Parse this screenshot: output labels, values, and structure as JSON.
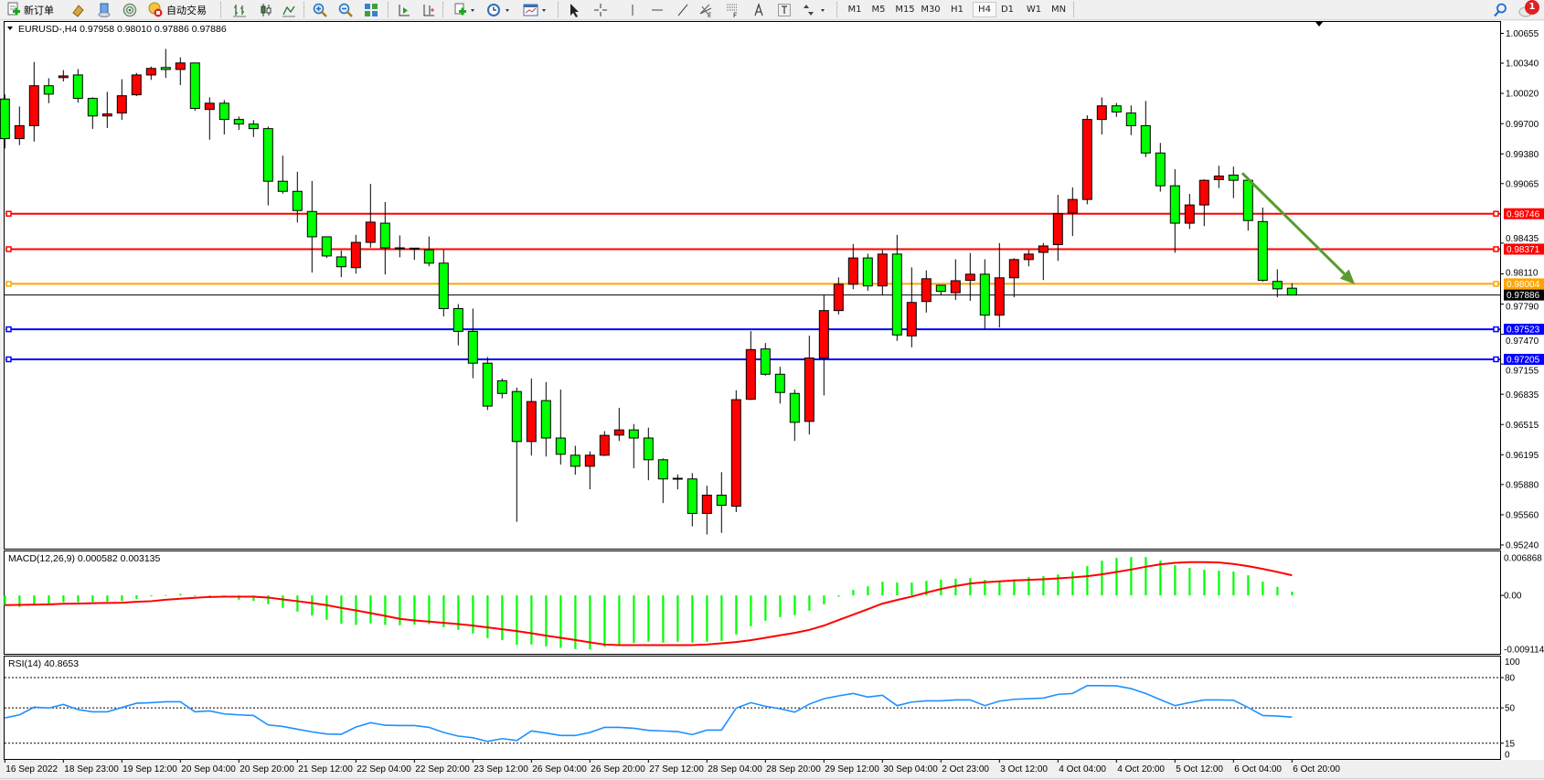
{
  "toolbar": {
    "new_order_label": "新订单",
    "auto_trading_label": "自动交易",
    "timeframes": [
      "M1",
      "M5",
      "M15",
      "M30",
      "H1",
      "H4",
      "D1",
      "W1",
      "MN"
    ],
    "active_timeframe": "H4",
    "notification_count": "1",
    "icons": [
      "new-order-icon",
      "market-watch-icon",
      "navigator-icon",
      "signals-icon",
      "auto-trading-icon",
      "bar-chart-icon",
      "candlestick-icon",
      "line-chart-icon",
      "zoom-in-icon",
      "zoom-out-icon",
      "tile-windows-icon",
      "auto-scroll-icon",
      "chart-shift-icon",
      "indicators-icon",
      "periods-icon",
      "templates-icon",
      "cursor-icon",
      "crosshair-icon",
      "vertical-line-icon",
      "horizontal-line-icon",
      "trendline-icon",
      "fibonacci-fan-icon",
      "fibonacci-retracement-icon",
      "text-icon",
      "text-label-icon",
      "arrows-icon",
      "search-icon",
      "notification-icon"
    ]
  },
  "chart": {
    "symbol": "EURUSD-,H4",
    "ohlc": "0.97958 0.98010 0.97886 0.97886"
  },
  "colors": {
    "bull": "#ff0000",
    "bear": "#00ff00",
    "resistance": "#ff0000",
    "pivot": "#ffa500",
    "support": "#0000ff",
    "arrow": "#5a9a2e",
    "macd_hist": "#00ff00",
    "macd_signal": "#ff0000",
    "rsi": "#1e90ff"
  },
  "chart_data": {
    "type": "candlestick",
    "price_axis_ticks": [
      "1.00655",
      "1.00340",
      "1.00020",
      "0.99700",
      "0.99380",
      "0.99065",
      "0.98435",
      "0.98110",
      "0.97790",
      "0.97470",
      "0.97155",
      "0.96835",
      "0.96515",
      "0.96195",
      "0.95880",
      "0.95560",
      "0.95240"
    ],
    "ylim": [
      0.9524,
      1.00655
    ],
    "time_labels": [
      "16 Sep 2022",
      "18 Sep 23:00",
      "19 Sep 12:00",
      "20 Sep 04:00",
      "20 Sep 20:00",
      "21 Sep 12:00",
      "22 Sep 04:00",
      "22 Sep 20:00",
      "23 Sep 12:00",
      "26 Sep 04:00",
      "26 Sep 20:00",
      "27 Sep 12:00",
      "28 Sep 04:00",
      "28 Sep 20:00",
      "29 Sep 12:00",
      "30 Sep 04:00",
      "2 Oct 23:00",
      "3 Oct 12:00",
      "4 Oct 04:00",
      "4 Oct 20:00",
      "5 Oct 12:00",
      "6 Oct 04:00",
      "6 Oct 20:00"
    ],
    "ohlc": [
      [
        0.9996,
        1.00008,
        0.99437,
        0.99541
      ],
      [
        0.99541,
        0.99881,
        0.99472,
        0.99678
      ],
      [
        0.99678,
        1.00352,
        0.9951,
        1.00101
      ],
      [
        1.00101,
        1.0018,
        0.99916,
        1.00012
      ],
      [
        1.00187,
        1.00266,
        1.00146,
        1.00205
      ],
      [
        1.00215,
        1.00277,
        0.99922,
        0.99967
      ],
      [
        0.99967,
        0.99978,
        0.99644,
        0.99781
      ],
      [
        0.99781,
        1.00036,
        0.99654,
        0.99802
      ],
      [
        0.99812,
        1.0017,
        0.9974,
        0.99995
      ],
      [
        1.00005,
        1.00236,
        0.99991,
        1.00215
      ],
      [
        1.00215,
        1.00304,
        1.00163,
        1.00284
      ],
      [
        1.00294,
        1.0049,
        1.00184,
        1.00273
      ],
      [
        1.00273,
        1.00401,
        1.00108,
        1.00342
      ],
      [
        1.00342,
        1.00342,
        0.99836,
        0.99861
      ],
      [
        0.9985,
        0.99978,
        0.9953,
        0.99916
      ],
      [
        0.99916,
        0.9995,
        0.99585,
        0.99744
      ],
      [
        0.99744,
        0.99775,
        0.99634,
        0.99695
      ],
      [
        0.99695,
        0.99737,
        0.99558,
        0.99647
      ],
      [
        0.99647,
        0.99668,
        0.98835,
        0.9909
      ],
      [
        0.9909,
        0.99362,
        0.98959,
        0.98983
      ],
      [
        0.98983,
        0.9919,
        0.98653,
        0.9878
      ],
      [
        0.9877,
        0.99093,
        0.98123,
        0.98502
      ],
      [
        0.98502,
        0.98502,
        0.98278,
        0.98299
      ],
      [
        0.98289,
        0.98357,
        0.98075,
        0.98185
      ],
      [
        0.98175,
        0.98522,
        0.98113,
        0.98443
      ],
      [
        0.98443,
        0.99062,
        0.98388,
        0.98657
      ],
      [
        0.98646,
        0.9887,
        0.98103,
        0.98385
      ],
      [
        0.98385,
        0.98516,
        0.98285,
        0.98382
      ],
      [
        0.98382,
        0.98385,
        0.98258,
        0.9838
      ],
      [
        0.98364,
        0.98505,
        0.98189,
        0.98223
      ],
      [
        0.98223,
        0.98364,
        0.97659,
        0.97742
      ],
      [
        0.97742,
        0.9779,
        0.97353,
        0.97501
      ],
      [
        0.97501,
        0.97742,
        0.97005,
        0.97164
      ],
      [
        0.97164,
        0.97229,
        0.96668,
        0.9671
      ],
      [
        0.96978,
        0.97002,
        0.96792,
        0.96844
      ],
      [
        0.96864,
        0.96906,
        0.95485,
        0.96335
      ],
      [
        0.96335,
        0.97002,
        0.96187,
        0.96758
      ],
      [
        0.96768,
        0.96964,
        0.96176,
        0.96372
      ],
      [
        0.96372,
        0.96885,
        0.9609,
        0.962
      ],
      [
        0.9619,
        0.9629,
        0.95984,
        0.96073
      ],
      [
        0.96073,
        0.96231,
        0.95829,
        0.9619
      ],
      [
        0.9619,
        0.96445,
        0.9618,
        0.964
      ],
      [
        0.96403,
        0.96692,
        0.96341,
        0.96458
      ],
      [
        0.96458,
        0.9652,
        0.96052,
        0.96372
      ],
      [
        0.96372,
        0.96482,
        0.95925,
        0.96142
      ],
      [
        0.96142,
        0.96156,
        0.95684,
        0.95939
      ],
      [
        0.95939,
        0.95987,
        0.95829,
        0.95946
      ],
      [
        0.95939,
        0.96001,
        0.95437,
        0.95574
      ],
      [
        0.95574,
        0.95867,
        0.95351,
        0.95767
      ],
      [
        0.95767,
        0.96011,
        0.95368,
        0.9566
      ],
      [
        0.9565,
        0.96878,
        0.95588,
        0.96778
      ],
      [
        0.96782,
        0.97504,
        0.96775,
        0.97308
      ],
      [
        0.97315,
        0.97377,
        0.97033,
        0.97047
      ],
      [
        0.97047,
        0.97126,
        0.96737,
        0.96854
      ],
      [
        0.96844,
        0.96885,
        0.96341,
        0.96538
      ],
      [
        0.96548,
        0.97456,
        0.9641,
        0.97219
      ],
      [
        0.97219,
        0.97886,
        0.96823,
        0.97721
      ],
      [
        0.97721,
        0.98072,
        0.9768,
        0.98
      ],
      [
        0.98,
        0.98426,
        0.97948,
        0.98278
      ],
      [
        0.98278,
        0.98323,
        0.97931,
        0.97982
      ],
      [
        0.97982,
        0.98361,
        0.97886,
        0.98319
      ],
      [
        0.98319,
        0.98522,
        0.97401,
        0.97463
      ],
      [
        0.97453,
        0.98178,
        0.97332,
        0.97807
      ],
      [
        0.97817,
        0.98147,
        0.977,
        0.98058
      ],
      [
        0.97989,
        0.97989,
        0.97886,
        0.97924
      ],
      [
        0.9791,
        0.98264,
        0.97834,
        0.98037
      ],
      [
        0.98041,
        0.9833,
        0.97824,
        0.98106
      ],
      [
        0.98106,
        0.98264,
        0.97528,
        0.97673
      ],
      [
        0.97673,
        0.98436,
        0.97542,
        0.98068
      ],
      [
        0.98068,
        0.98275,
        0.97862,
        0.98261
      ],
      [
        0.98261,
        0.98361,
        0.98189,
        0.98319
      ],
      [
        0.98337,
        0.98436,
        0.98044,
        0.98405
      ],
      [
        0.98419,
        0.98946,
        0.98247,
        0.98746
      ],
      [
        0.98753,
        0.99025,
        0.98509,
        0.98897
      ],
      [
        0.98897,
        0.99788,
        0.98846,
        0.99744
      ],
      [
        0.99744,
        0.99978,
        0.99585,
        0.99888
      ],
      [
        0.99888,
        0.99919,
        0.99771,
        0.99823
      ],
      [
        0.99812,
        0.99892,
        0.99578,
        0.99678
      ],
      [
        0.99678,
        0.9994,
        0.99345,
        0.99389
      ],
      [
        0.99389,
        0.99496,
        0.9898,
        0.99042
      ],
      [
        0.99042,
        0.99217,
        0.98333,
        0.98646
      ],
      [
        0.98646,
        0.98956,
        0.98584,
        0.98839
      ],
      [
        0.98839,
        0.9911,
        0.98615,
        0.991
      ],
      [
        0.99107,
        0.99255,
        0.99018,
        0.99145
      ],
      [
        0.99155,
        0.99245,
        0.98911,
        0.991
      ],
      [
        0.991,
        0.991,
        0.98567,
        0.98674
      ],
      [
        0.98663,
        0.98811,
        0.98027,
        0.98041
      ],
      [
        0.9803,
        0.98158,
        0.97862,
        0.97951
      ],
      [
        0.97958,
        0.9801,
        0.97886,
        0.97886
      ]
    ],
    "current_price": "0.97886",
    "horizontal_lines": [
      {
        "price": "0.98746",
        "role": "resistance"
      },
      {
        "price": "0.98371",
        "role": "resistance"
      },
      {
        "price": "0.98004",
        "role": "pivot"
      },
      {
        "price": "0.97523",
        "role": "support"
      },
      {
        "price": "0.97205",
        "role": "support"
      }
    ],
    "arrow": {
      "from": {
        "bar": 84.6,
        "price": 0.99176
      },
      "to": {
        "bar": 92.3,
        "price": 0.98
      }
    },
    "macd": {
      "label": "MACD(12,26,9) 0.000582 0.003135",
      "axis_labels": [
        "0.006868",
        "0.00",
        "-0.009114"
      ],
      "ylim": [
        -0.009114,
        0.006868
      ],
      "histogram": [
        -0.00157,
        -0.00181,
        -0.00147,
        -0.00128,
        -0.00105,
        -0.00105,
        -0.001,
        -0.00095,
        -0.00086,
        -0.00057,
        -0.00014,
        5e-05,
        0.00024,
        -5e-05,
        -0.0002,
        -0.0002,
        -0.00067,
        -0.00086,
        -0.00138,
        -0.00195,
        -0.00252,
        -0.00314,
        -0.00381,
        -0.00442,
        -0.00461,
        -0.00438,
        -0.00461,
        -0.00466,
        -0.00457,
        -0.00447,
        -0.00495,
        -0.00538,
        -0.00595,
        -0.00666,
        -0.00699,
        -0.00771,
        -0.00766,
        -0.00794,
        -0.00818,
        -0.00837,
        -0.00842,
        -0.00799,
        -0.00775,
        -0.00742,
        -0.00723,
        -0.00737,
        -0.00723,
        -0.00737,
        -0.00723,
        -0.00709,
        -0.00609,
        -0.0048,
        -0.00395,
        -0.00338,
        -0.00309,
        -0.00238,
        -0.00138,
        -0.00019,
        0.00086,
        0.00143,
        0.00214,
        0.002,
        0.002,
        0.00228,
        0.00247,
        0.00262,
        0.00271,
        0.00243,
        0.00228,
        0.00252,
        0.00285,
        0.003,
        0.00328,
        0.00371,
        0.00457,
        0.00542,
        0.00585,
        0.00599,
        0.00599,
        0.00542,
        0.00471,
        0.00428,
        0.004,
        0.00385,
        0.00371,
        0.00314,
        0.00214,
        0.00133,
        0.000582
      ],
      "signal": [
        -0.00152,
        -0.00148,
        -0.00145,
        -0.0014,
        -0.0013,
        -0.00128,
        -0.00122,
        -0.00118,
        -0.00114,
        -0.001,
        -0.0009,
        -0.00067,
        -0.00052,
        -0.00038,
        -0.00024,
        -0.00019,
        -0.00019,
        -0.00019,
        -0.00033,
        -0.00062,
        -0.0009,
        -0.00119,
        -0.00152,
        -0.00195,
        -0.00233,
        -0.00276,
        -0.00319,
        -0.00366,
        -0.0039,
        -0.00409,
        -0.00428,
        -0.00447,
        -0.00471,
        -0.00499,
        -0.00528,
        -0.00557,
        -0.0059,
        -0.00628,
        -0.00661,
        -0.00695,
        -0.00733,
        -0.00766,
        -0.00775,
        -0.00775,
        -0.00775,
        -0.00775,
        -0.00775,
        -0.00775,
        -0.00766,
        -0.00747,
        -0.00728,
        -0.00699,
        -0.00661,
        -0.00623,
        -0.00585,
        -0.00538,
        -0.00471,
        -0.00385,
        -0.003,
        -0.00214,
        -0.00128,
        -0.00071,
        -0.00019,
        0.00043,
        0.001,
        0.00147,
        0.00186,
        0.00205,
        0.00219,
        0.00233,
        0.00243,
        0.00252,
        0.00266,
        0.00281,
        0.003,
        0.00328,
        0.00366,
        0.00404,
        0.00447,
        0.00485,
        0.00509,
        0.00519,
        0.00519,
        0.00514,
        0.0049,
        0.00457,
        0.00414,
        0.00366,
        0.003135
      ]
    },
    "rsi": {
      "label": "RSI(14) 40.8653",
      "axis_labels": [
        "100",
        "80",
        "50",
        "15",
        "0"
      ],
      "levels": [
        80,
        50,
        15
      ],
      "ylim": [
        0,
        100
      ],
      "values": [
        40.1,
        43.1,
        50.7,
        49.8,
        53.4,
        48.3,
        46.1,
        46.1,
        50.4,
        54.6,
        55.2,
        56.1,
        56.1,
        46.1,
        47.0,
        44.0,
        43.1,
        42.5,
        33.1,
        31.6,
        28.9,
        26.2,
        24.1,
        23.8,
        31.0,
        35.3,
        32.8,
        32.5,
        32.5,
        30.7,
        25.6,
        22.0,
        20.4,
        16.8,
        19.5,
        17.7,
        27.1,
        25.0,
        22.6,
        22.6,
        25.6,
        30.7,
        30.7,
        29.8,
        27.7,
        27.1,
        26.5,
        23.5,
        28.0,
        28.0,
        49.8,
        55.2,
        51.6,
        49.2,
        45.8,
        53.7,
        59.1,
        61.9,
        64.3,
        60.7,
        62.5,
        52.2,
        55.8,
        57.0,
        57.0,
        57.9,
        57.9,
        52.2,
        56.7,
        58.5,
        59.1,
        59.7,
        63.4,
        64.3,
        72.1,
        72.1,
        71.8,
        69.1,
        64.3,
        58.2,
        52.2,
        55.2,
        57.9,
        57.9,
        57.6,
        50.4,
        42.5,
        41.9,
        40.8653
      ]
    }
  }
}
